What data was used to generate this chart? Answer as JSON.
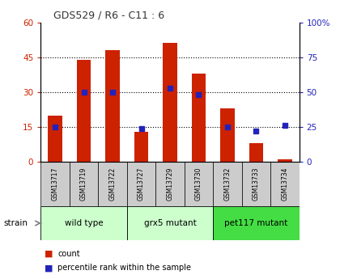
{
  "title": "GDS529 / R6 - C11 : 6",
  "samples": [
    "GSM13717",
    "GSM13719",
    "GSM13722",
    "GSM13727",
    "GSM13729",
    "GSM13730",
    "GSM13732",
    "GSM13733",
    "GSM13734"
  ],
  "counts": [
    20,
    44,
    48,
    13,
    51,
    38,
    23,
    8,
    1
  ],
  "percentiles": [
    25,
    50,
    50,
    24,
    53,
    48,
    25,
    22,
    26
  ],
  "ylim_left": [
    0,
    60
  ],
  "ylim_right": [
    0,
    100
  ],
  "yticks_left": [
    0,
    15,
    30,
    45,
    60
  ],
  "yticks_right": [
    0,
    25,
    50,
    75,
    100
  ],
  "ytick_labels_left": [
    "0",
    "15",
    "30",
    "45",
    "60"
  ],
  "ytick_labels_right": [
    "0",
    "25",
    "50",
    "75",
    "100%"
  ],
  "bar_color": "#cc2200",
  "marker_color": "#2222bb",
  "title_color": "#333333",
  "strain_label": "strain",
  "legend_count": "count",
  "legend_percentile": "percentile rank within the sample",
  "group1_label": "wild type",
  "group2_label": "grx5 mutant",
  "group3_label": "pet117 mutant",
  "group_bg_light": "#ccffcc",
  "group_bg_dark": "#44dd44",
  "tick_bg": "#cccccc",
  "bar_width": 0.5
}
